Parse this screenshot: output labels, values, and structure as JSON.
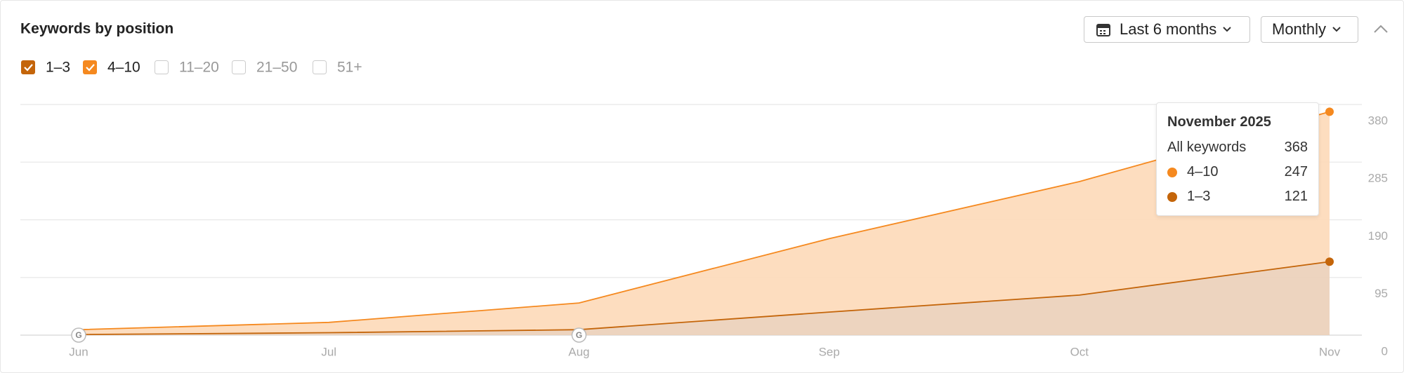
{
  "chart_data": {
    "type": "stacked-area",
    "title": "Keywords by position",
    "controls": {
      "range": "Last 6 months",
      "interval": "Monthly"
    },
    "categories": [
      "Jun",
      "Jul",
      "Aug",
      "Sep",
      "Oct",
      "Nov"
    ],
    "series": [
      {
        "name": "1–3",
        "color": "#c4650a",
        "fill": "#ebcfb8",
        "checked": true,
        "values": [
          1,
          4,
          9,
          38,
          66,
          121
        ]
      },
      {
        "name": "4–10",
        "color": "#f5891f",
        "fill": "#fdd9b8",
        "checked": true,
        "values": [
          8,
          17,
          44,
          121,
          187,
          247
        ]
      }
    ],
    "inactive_series": [
      "11–20",
      "21–50",
      "51+"
    ],
    "ylim": [
      0,
      380
    ],
    "yticks": [
      0,
      95,
      190,
      285,
      380
    ],
    "grid": true,
    "annotations": [
      {
        "category": "Jun",
        "label": "G"
      },
      {
        "category": "Aug",
        "label": "G"
      }
    ],
    "tooltip": {
      "title": "November 2025",
      "total_label": "All keywords",
      "total": 368
    }
  }
}
